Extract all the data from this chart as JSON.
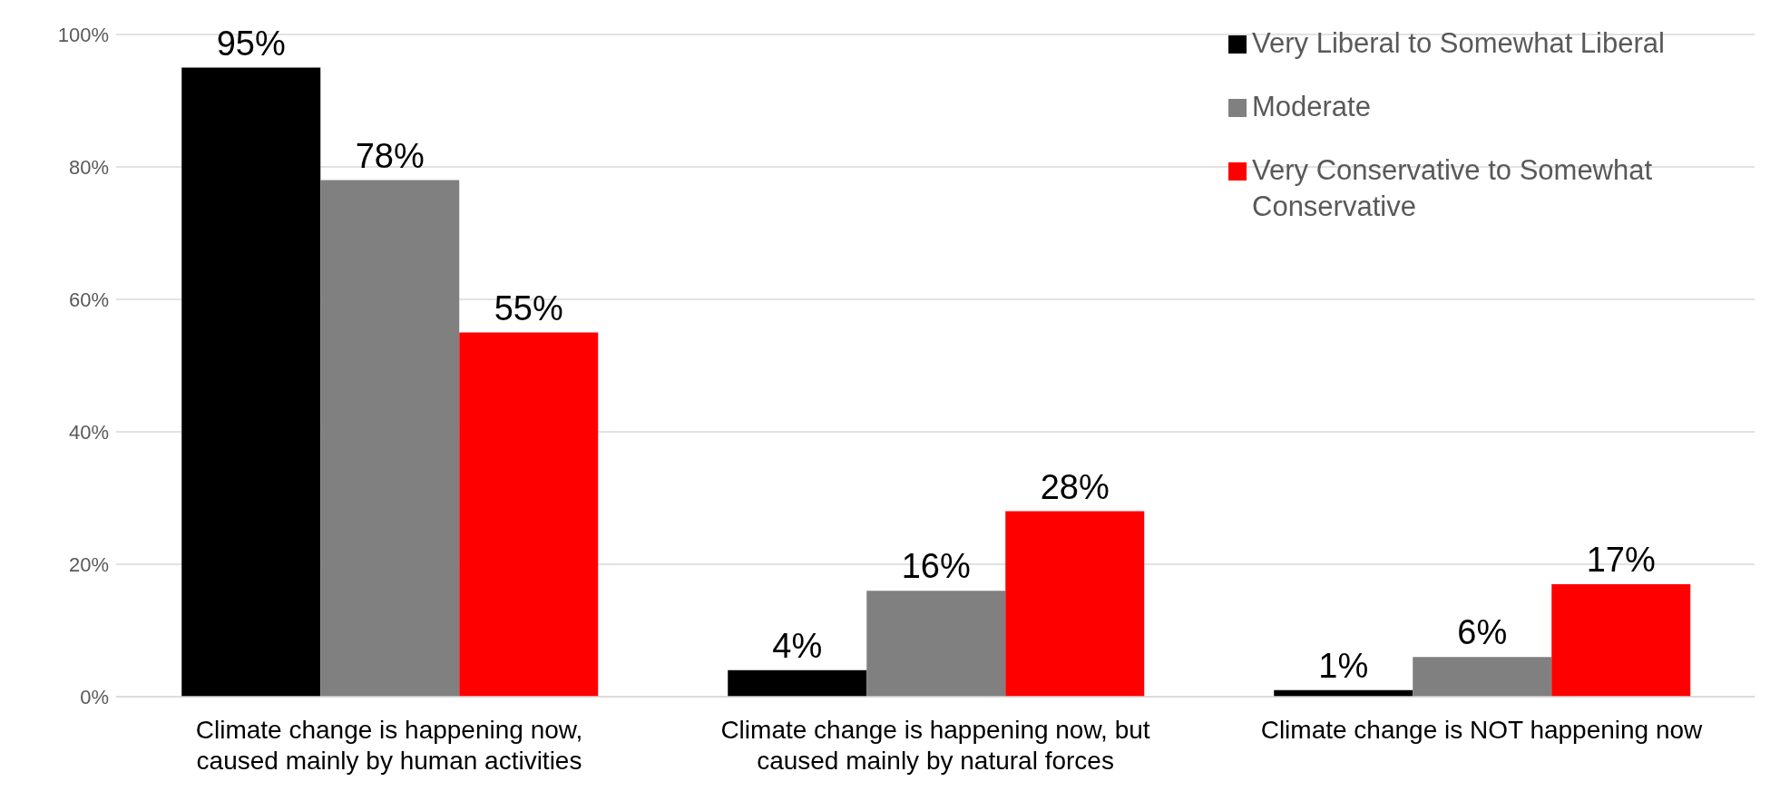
{
  "chart_data": {
    "type": "bar",
    "categories": [
      "Climate change is happening now, caused mainly by human activities",
      "Climate change is happening now, but caused mainly by natural forces",
      "Climate change is NOT happening now"
    ],
    "series": [
      {
        "name": "Very Liberal to Somewhat Liberal",
        "color": "#000000",
        "values": [
          95,
          4,
          1
        ],
        "value_labels": [
          "95%",
          "4%",
          "1%"
        ]
      },
      {
        "name": "Moderate",
        "color": "#808080",
        "values": [
          78,
          16,
          6
        ],
        "value_labels": [
          "78%",
          "16%",
          "6%"
        ]
      },
      {
        "name": "Very Conservative to Somewhat Conservative",
        "color": "#ff0000",
        "values": [
          55,
          28,
          17
        ],
        "value_labels": [
          "55%",
          "28%",
          "17%"
        ]
      }
    ],
    "ylim": [
      0,
      100
    ],
    "yticks": [
      {
        "value": 0,
        "label": "0%"
      },
      {
        "value": 20,
        "label": "20%"
      },
      {
        "value": 40,
        "label": "40%"
      },
      {
        "value": 60,
        "label": "60%"
      },
      {
        "value": 80,
        "label": "80%"
      },
      {
        "value": 100,
        "label": "100%"
      }
    ],
    "grid": "y",
    "legend": "top right"
  }
}
